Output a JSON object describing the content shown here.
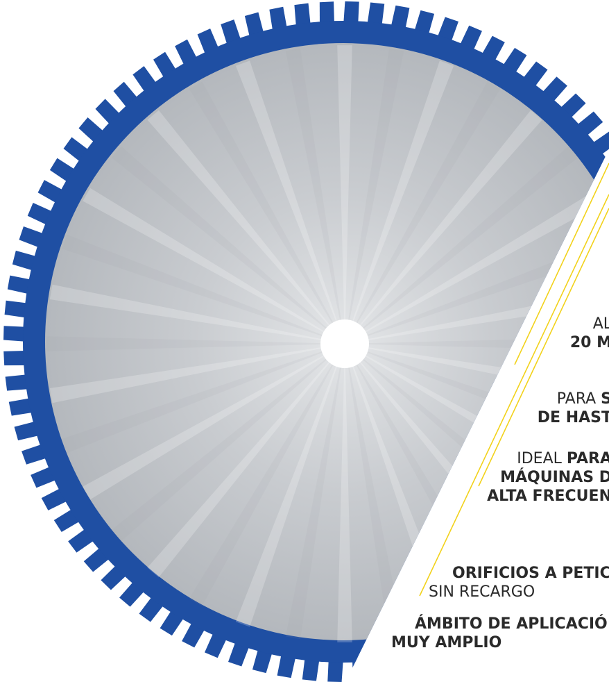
{
  "colors": {
    "blade_blue": "#1f4fa3",
    "blade_steel": "#c8cbce",
    "accent_yellow": "#f2d21b",
    "text": "#2a2a2a",
    "background": "#ffffff"
  },
  "features": [
    {
      "lines": [
        [
          {
            "t": "AL",
            "b": false
          }
        ],
        [
          {
            "t": "20 M",
            "b": true
          }
        ]
      ]
    },
    {
      "lines": [
        [
          {
            "t": "PARA ",
            "b": false
          },
          {
            "t": "S",
            "b": true
          }
        ],
        [
          {
            "t": "DE HAST",
            "b": true
          }
        ]
      ]
    },
    {
      "lines": [
        [
          {
            "t": "IDEAL ",
            "b": false
          },
          {
            "t": "PARA",
            "b": true
          }
        ],
        [
          {
            "t": "MÁQUINAS D",
            "b": true
          }
        ],
        [
          {
            "t": "ALTA FRECUEN",
            "b": true
          }
        ]
      ]
    },
    {
      "lines": [
        [
          {
            "t": "ORIFICIOS A PETICI",
            "b": true
          }
        ],
        [
          {
            "t": "SIN RECARGO",
            "b": false
          }
        ]
      ]
    },
    {
      "lines": [
        [
          {
            "t": "ÁMBITO DE APLICACIÓ",
            "b": true
          }
        ],
        [
          {
            "t": "MUY AMPLIO",
            "b": true
          }
        ]
      ]
    }
  ]
}
